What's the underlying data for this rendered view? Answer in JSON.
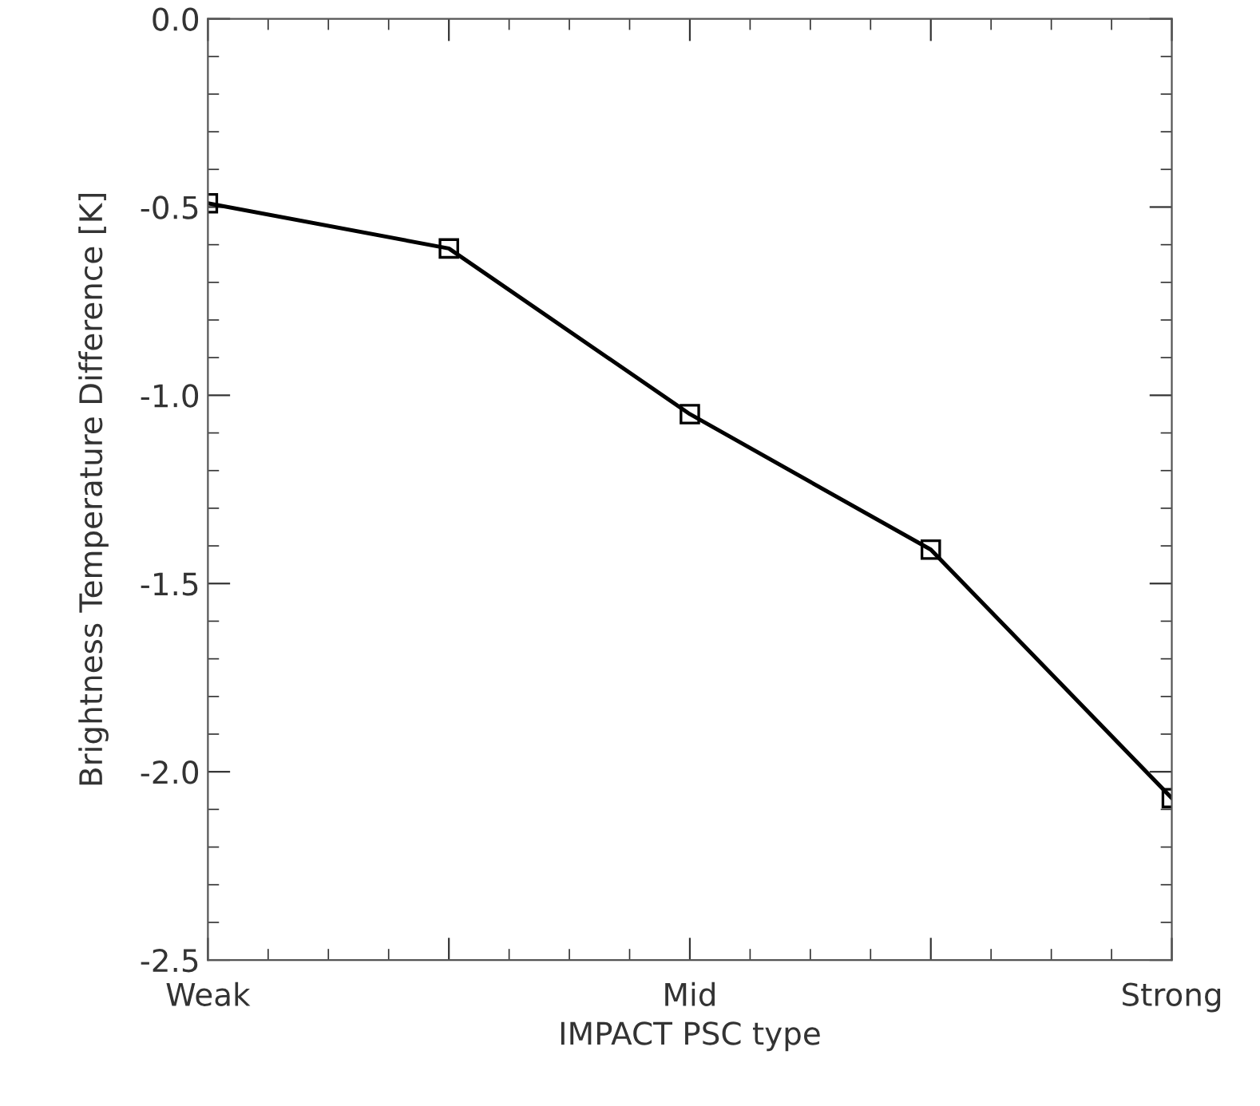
{
  "chart_data": {
    "type": "line",
    "xlabel": "IMPACT PSC type",
    "ylabel": "Brightness Temperature Difference [K]",
    "categories": [
      "Weak",
      null,
      "Mid",
      null,
      "Strong"
    ],
    "series": [
      {
        "color": "#000000",
        "values": [
          -0.49,
          -0.61,
          -1.05,
          -1.41,
          -2.07
        ]
      }
    ],
    "ylim": [
      -2.5,
      0.0
    ],
    "yticks": [
      {
        "value": -2.5,
        "label": "-2.5"
      },
      {
        "value": -2.0,
        "label": "-2.0"
      },
      {
        "value": -1.5,
        "label": "-1.5"
      },
      {
        "value": -1.0,
        "label": "-1.0"
      },
      {
        "value": -0.5,
        "label": "-0.5"
      },
      {
        "value": 0.0,
        "label": "0.0"
      }
    ],
    "marker": "square",
    "line_style": "solid",
    "grid": false
  }
}
